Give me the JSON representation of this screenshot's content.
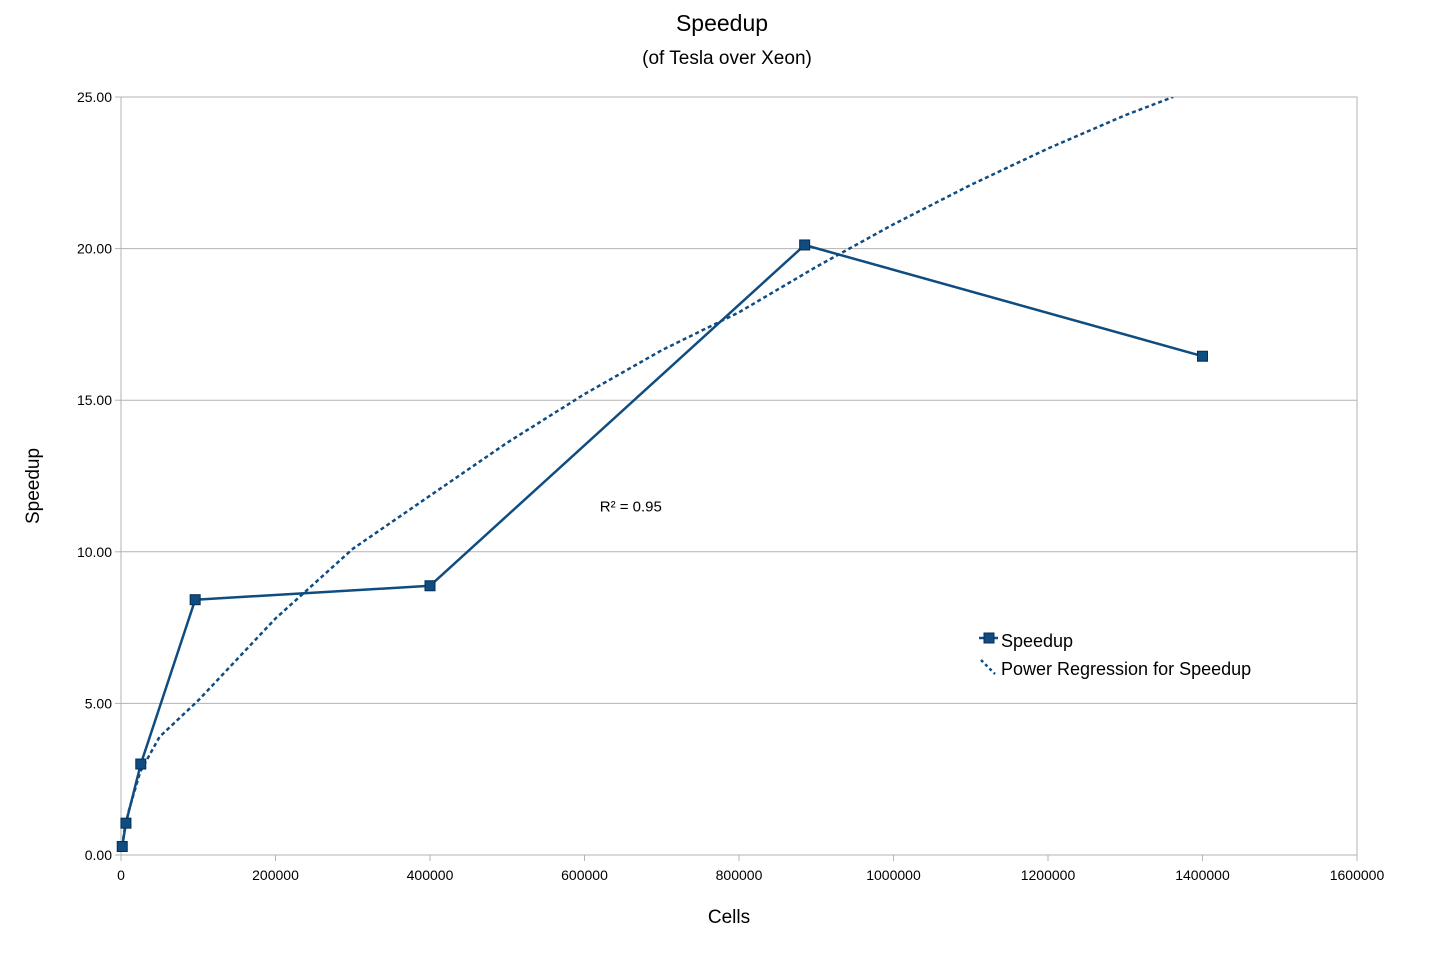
{
  "chart_data": {
    "type": "line",
    "title": "Speedup",
    "subtitle": "(of Tesla over Xeon)",
    "xlabel": "Cells",
    "ylabel": "Speedup",
    "xlim": [
      0,
      1600000
    ],
    "ylim": [
      0,
      25
    ],
    "xticks": [
      "0",
      "200000",
      "400000",
      "600000",
      "800000",
      "1000000",
      "1200000",
      "1400000",
      "1600000"
    ],
    "yticks": [
      "0.00",
      "5.00",
      "10.00",
      "15.00",
      "20.00",
      "25.00"
    ],
    "grid": "horizontal",
    "legend_position": "right",
    "series": [
      {
        "name": "Speedup",
        "style": "solid-with-square-markers",
        "color": "#0f4c81",
        "x": [
          1600,
          6400,
          25600,
          96000,
          400000,
          885000,
          1400000
        ],
        "y": [
          0.28,
          1.05,
          3.0,
          8.42,
          8.88,
          20.12,
          16.45
        ]
      },
      {
        "name": "Power Regression for Speedup",
        "style": "dotted",
        "color": "#0f4c81",
        "x": [
          1600,
          5000,
          10000,
          25000,
          50000,
          100000,
          200000,
          300000,
          400000,
          500000,
          600000,
          700000,
          800000,
          900000,
          1000000,
          1100000,
          1200000,
          1300000,
          1362000
        ],
        "y": [
          0.3,
          0.9,
          1.45,
          2.75,
          3.9,
          5.1,
          7.8,
          10.1,
          11.85,
          13.6,
          15.2,
          16.65,
          17.9,
          19.4,
          20.8,
          22.1,
          23.3,
          24.4,
          25.0
        ]
      }
    ],
    "annotations": [
      {
        "text": "R² = 0.95",
        "x": 660000,
        "y": 11.5
      }
    ]
  }
}
